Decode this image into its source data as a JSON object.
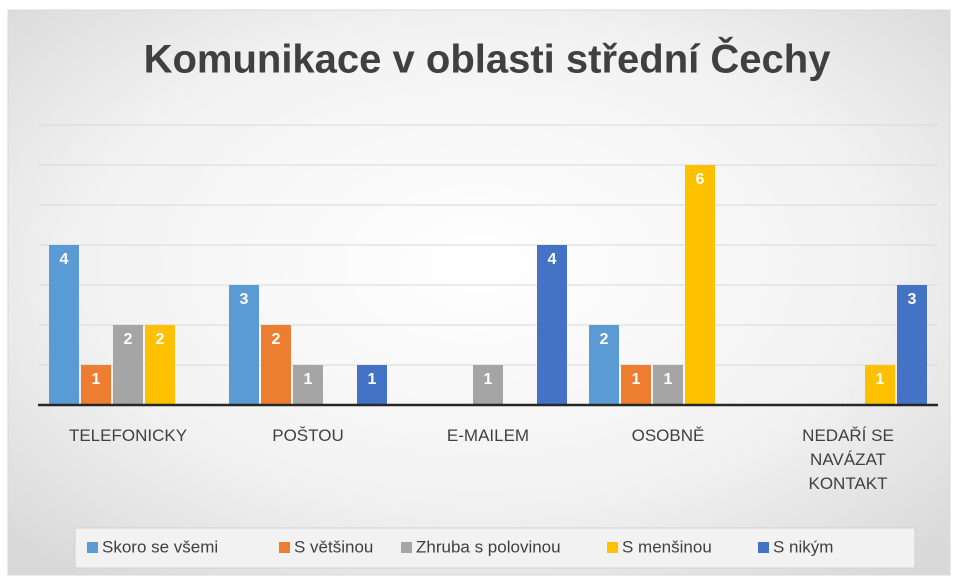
{
  "chart_data": {
    "type": "bar",
    "title": "Komunikace v oblasti střední Čechy",
    "categories": [
      "TELEFONICKY",
      "POŠTOU",
      "E-MAILEM",
      "OSOBNĚ",
      "NEDAŘÍ SE NAVÁZAT KONTAKT"
    ],
    "series": [
      {
        "name": "Skoro se všemi",
        "color": "#5b9bd5",
        "values": [
          4,
          3,
          null,
          2,
          0
        ]
      },
      {
        "name": "S většinou",
        "color": "#ed7d31",
        "values": [
          1,
          2,
          null,
          1,
          0
        ]
      },
      {
        "name": "Zhruba s polovinou",
        "color": "#a5a5a5",
        "values": [
          2,
          1,
          1,
          1,
          0
        ]
      },
      {
        "name": "S menšinou",
        "color": "#ffc000",
        "values": [
          2,
          null,
          null,
          6,
          1
        ]
      },
      {
        "name": "S nikým",
        "color": "#4472c4",
        "values": [
          0,
          1,
          4,
          0,
          3
        ]
      }
    ],
    "ylim": [
      0,
      7
    ],
    "yticks": [
      0,
      1,
      2,
      3,
      4,
      5,
      6,
      7
    ],
    "grid": true,
    "legend": "bottom"
  }
}
